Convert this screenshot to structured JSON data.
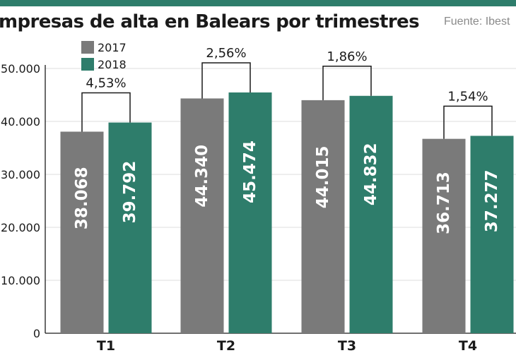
{
  "header": {
    "title": "mpresas de alta en Balears por trimestres",
    "source": "Fuente: Ibest"
  },
  "colors": {
    "rule": "#2e7d6b",
    "s2017": "#7a7a7a",
    "s2018": "#2e7d6b",
    "grid": "#dedede",
    "text": "#1a1a1a",
    "bracket": "#1a1a1a"
  },
  "chart_data": {
    "type": "bar",
    "title": "mpresas de alta en Balears por trimestres",
    "xlabel": "",
    "ylabel": "",
    "categories": [
      "T1",
      "T2",
      "T3",
      "T4"
    ],
    "series": [
      {
        "name": "2017",
        "values": [
          38068,
          44340,
          44015,
          36713
        ],
        "labels": [
          "38.068",
          "44.340",
          "44.015",
          "36.713"
        ]
      },
      {
        "name": "2018",
        "values": [
          39792,
          45474,
          44832,
          37277
        ],
        "labels": [
          "39.792",
          "45.474",
          "44.832",
          "37.277"
        ]
      }
    ],
    "growth_labels": [
      "4,53%",
      "2,56%",
      "1,86%",
      "1,54%"
    ],
    "ylim": [
      0,
      50000
    ],
    "yticks": [
      0,
      10000,
      20000,
      30000,
      40000,
      50000
    ],
    "ytick_labels": [
      "0",
      "10.000",
      "20.000",
      "30.000",
      "40.000",
      "50.000"
    ],
    "grid": true,
    "legend_position": "top-left"
  }
}
